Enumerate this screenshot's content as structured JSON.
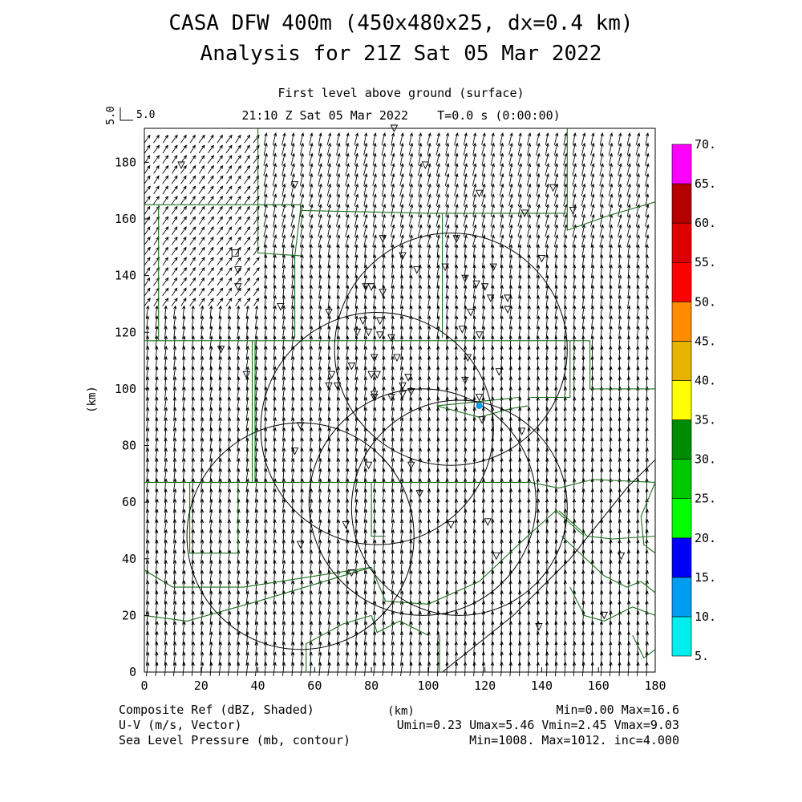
{
  "title_line1": "CASA DFW 400m (450x480x25, dx=0.4 km)",
  "title_line2": "Analysis for 21Z Sat 05 Mar 2022",
  "subtitle_level": "First level above ground (surface)",
  "subtitle_time": "21:10 Z Sat 05 Mar 2022    T=0.0 s (0:00:00)",
  "ref_vector": {
    "rotated_label": "5.0",
    "label": "5.0"
  },
  "x_axis_label": "(km)",
  "y_axis_label": "(km)",
  "x_ticks": [
    0,
    20,
    40,
    60,
    80,
    100,
    120,
    140,
    160,
    180
  ],
  "y_ticks": [
    0,
    20,
    40,
    60,
    80,
    100,
    120,
    140,
    160,
    180
  ],
  "x_range": [
    0,
    180
  ],
  "y_range": [
    0,
    192
  ],
  "colorbar": {
    "labels": [
      "5.",
      "10.",
      "15.",
      "20.",
      "25.",
      "30.",
      "35.",
      "40.",
      "45.",
      "50.",
      "55.",
      "60.",
      "65.",
      "70."
    ],
    "colors": [
      "#00eeee",
      "#009cf2",
      "#0000f6",
      "#00ff00",
      "#00c800",
      "#008c00",
      "#ffff00",
      "#e6b400",
      "#ff8c00",
      "#ff0000",
      "#dc0000",
      "#b40000",
      "#ff00ff"
    ]
  },
  "footer": {
    "left": [
      "Composite Ref (dBZ, Shaded)",
      "U-V (m/s, Vector)",
      "Sea Level Pressure (mb, contour)"
    ],
    "center": "(km)",
    "right": [
      "Min=0.00 Max=16.6",
      "Umin=0.23 Umax=5.46 Vmin=2.45 Vmax=9.03",
      "Min=1008. Max=1012. inc=4.000"
    ]
  },
  "radar_rings": [
    {
      "center": [
        108,
        114
      ],
      "radius": 41
    },
    {
      "center": [
        82,
        86
      ],
      "radius": 41
    },
    {
      "center": [
        111,
        58
      ],
      "radius": 38
    },
    {
      "center": [
        55,
        48
      ],
      "radius": 40
    },
    {
      "center": [
        98,
        60
      ],
      "radius": 40
    }
  ],
  "radar_sites": [
    [
      32,
      148
    ]
  ],
  "echo": [
    [
      118,
      94
    ]
  ],
  "station_markers": [
    [
      88,
      192
    ],
    [
      13,
      179
    ],
    [
      99,
      179
    ],
    [
      53,
      172
    ],
    [
      118,
      169
    ],
    [
      144,
      171
    ],
    [
      151,
      163
    ],
    [
      134,
      162
    ],
    [
      84,
      153
    ],
    [
      110,
      153
    ],
    [
      91,
      147
    ],
    [
      106,
      143
    ],
    [
      123,
      143
    ],
    [
      140,
      146
    ],
    [
      33,
      142
    ],
    [
      96,
      142
    ],
    [
      113,
      139
    ],
    [
      117,
      137
    ],
    [
      120,
      136
    ],
    [
      33,
      136
    ],
    [
      78,
      136
    ],
    [
      80,
      136
    ],
    [
      84,
      134
    ],
    [
      122,
      132
    ],
    [
      128,
      132
    ],
    [
      128,
      128
    ],
    [
      48,
      129
    ],
    [
      65,
      127
    ],
    [
      115,
      127
    ],
    [
      77,
      124
    ],
    [
      83,
      124
    ],
    [
      75,
      120
    ],
    [
      79,
      120
    ],
    [
      83,
      119
    ],
    [
      87,
      118
    ],
    [
      112,
      121
    ],
    [
      118,
      119
    ],
    [
      89,
      111
    ],
    [
      81,
      111
    ],
    [
      27,
      114
    ],
    [
      73,
      108
    ],
    [
      114,
      111
    ],
    [
      125,
      106
    ],
    [
      36,
      105
    ],
    [
      66,
      105
    ],
    [
      65,
      101
    ],
    [
      80,
      105
    ],
    [
      82,
      105
    ],
    [
      68,
      101
    ],
    [
      93,
      104
    ],
    [
      91,
      101
    ],
    [
      81,
      98
    ],
    [
      94,
      99
    ],
    [
      81,
      97
    ],
    [
      87,
      97
    ],
    [
      91,
      98
    ],
    [
      118,
      97
    ],
    [
      113,
      103
    ],
    [
      119,
      89
    ],
    [
      55,
      87
    ],
    [
      133,
      85
    ],
    [
      53,
      78
    ],
    [
      79,
      73
    ],
    [
      94,
      73
    ],
    [
      97,
      63
    ],
    [
      108,
      52
    ],
    [
      121,
      53
    ],
    [
      71,
      52
    ],
    [
      55,
      45
    ],
    [
      73,
      35
    ],
    [
      124,
      41
    ],
    [
      168,
      41
    ],
    [
      139,
      16
    ],
    [
      162,
      20
    ]
  ],
  "county_lines": [
    [
      [
        40,
        192
      ],
      [
        40,
        148
      ],
      [
        55,
        147
      ]
    ],
    [
      [
        0,
        165
      ],
      [
        55,
        165
      ],
      [
        55,
        163
      ]
    ],
    [
      [
        5,
        165
      ],
      [
        5,
        117
      ]
    ],
    [
      [
        55,
        163
      ],
      [
        53,
        147
      ],
      [
        53,
        118
      ]
    ],
    [
      [
        55,
        163
      ],
      [
        100,
        162
      ],
      [
        105,
        162
      ]
    ],
    [
      [
        105,
        162
      ],
      [
        149,
        162
      ]
    ],
    [
      [
        149,
        192
      ],
      [
        149,
        156
      ],
      [
        163,
        161
      ],
      [
        180,
        166
      ]
    ],
    [
      [
        105,
        162
      ],
      [
        105,
        118
      ]
    ],
    [
      [
        0,
        117
      ],
      [
        157,
        117
      ]
    ],
    [
      [
        157,
        117
      ],
      [
        157,
        100
      ],
      [
        180,
        100
      ]
    ],
    [
      [
        150,
        117
      ],
      [
        150,
        97
      ],
      [
        136,
        97
      ]
    ],
    [
      [
        132,
        97
      ],
      [
        103,
        94
      ],
      [
        118,
        90
      ],
      [
        129,
        93
      ],
      [
        135,
        94
      ]
    ],
    [
      [
        38,
        117
      ],
      [
        38,
        67
      ]
    ],
    [
      [
        39,
        117
      ],
      [
        39,
        67
      ]
    ],
    [
      [
        33,
        67
      ],
      [
        33,
        42
      ],
      [
        16,
        42
      ],
      [
        16,
        67
      ]
    ],
    [
      [
        0,
        67
      ],
      [
        136,
        67
      ]
    ],
    [
      [
        136,
        67
      ],
      [
        146,
        65
      ],
      [
        158,
        68
      ],
      [
        180,
        67
      ]
    ],
    [
      [
        80,
        67
      ],
      [
        80,
        48
      ],
      [
        85,
        48
      ]
    ],
    [
      [
        0,
        20
      ],
      [
        15,
        18
      ],
      [
        40,
        25
      ],
      [
        80,
        37
      ]
    ],
    [
      [
        0,
        36
      ],
      [
        10,
        30
      ],
      [
        35,
        30
      ],
      [
        80,
        37
      ]
    ],
    [
      [
        80,
        37
      ],
      [
        85,
        25
      ],
      [
        100,
        24
      ],
      [
        118,
        32
      ]
    ],
    [
      [
        118,
        32
      ],
      [
        135,
        48
      ],
      [
        145,
        57
      ],
      [
        155,
        48
      ]
    ],
    [
      [
        146,
        57
      ],
      [
        156,
        48
      ],
      [
        165,
        47
      ],
      [
        180,
        48
      ]
    ],
    [
      [
        147,
        48
      ],
      [
        162,
        34
      ],
      [
        170,
        30
      ],
      [
        175,
        32
      ],
      [
        180,
        28
      ]
    ],
    [
      [
        150,
        30
      ],
      [
        155,
        20
      ],
      [
        162,
        18
      ],
      [
        172,
        23
      ],
      [
        180,
        20
      ]
    ],
    [
      [
        180,
        67
      ],
      [
        175,
        55
      ],
      [
        176,
        45
      ],
      [
        180,
        42
      ]
    ],
    [
      [
        104,
        13
      ],
      [
        104,
        0
      ]
    ],
    [
      [
        172,
        13
      ],
      [
        176,
        5
      ],
      [
        180,
        8
      ]
    ],
    [
      [
        57,
        0
      ],
      [
        57,
        10
      ],
      [
        70,
        17
      ],
      [
        80,
        20
      ]
    ],
    [
      [
        80,
        20
      ],
      [
        82,
        14
      ],
      [
        90,
        18
      ],
      [
        100,
        13
      ]
    ]
  ],
  "pressure_contours": [
    [
      [
        105,
        0
      ],
      [
        130,
        20
      ],
      [
        150,
        40
      ],
      [
        162,
        55
      ],
      [
        170,
        65
      ],
      [
        180,
        75
      ]
    ]
  ]
}
